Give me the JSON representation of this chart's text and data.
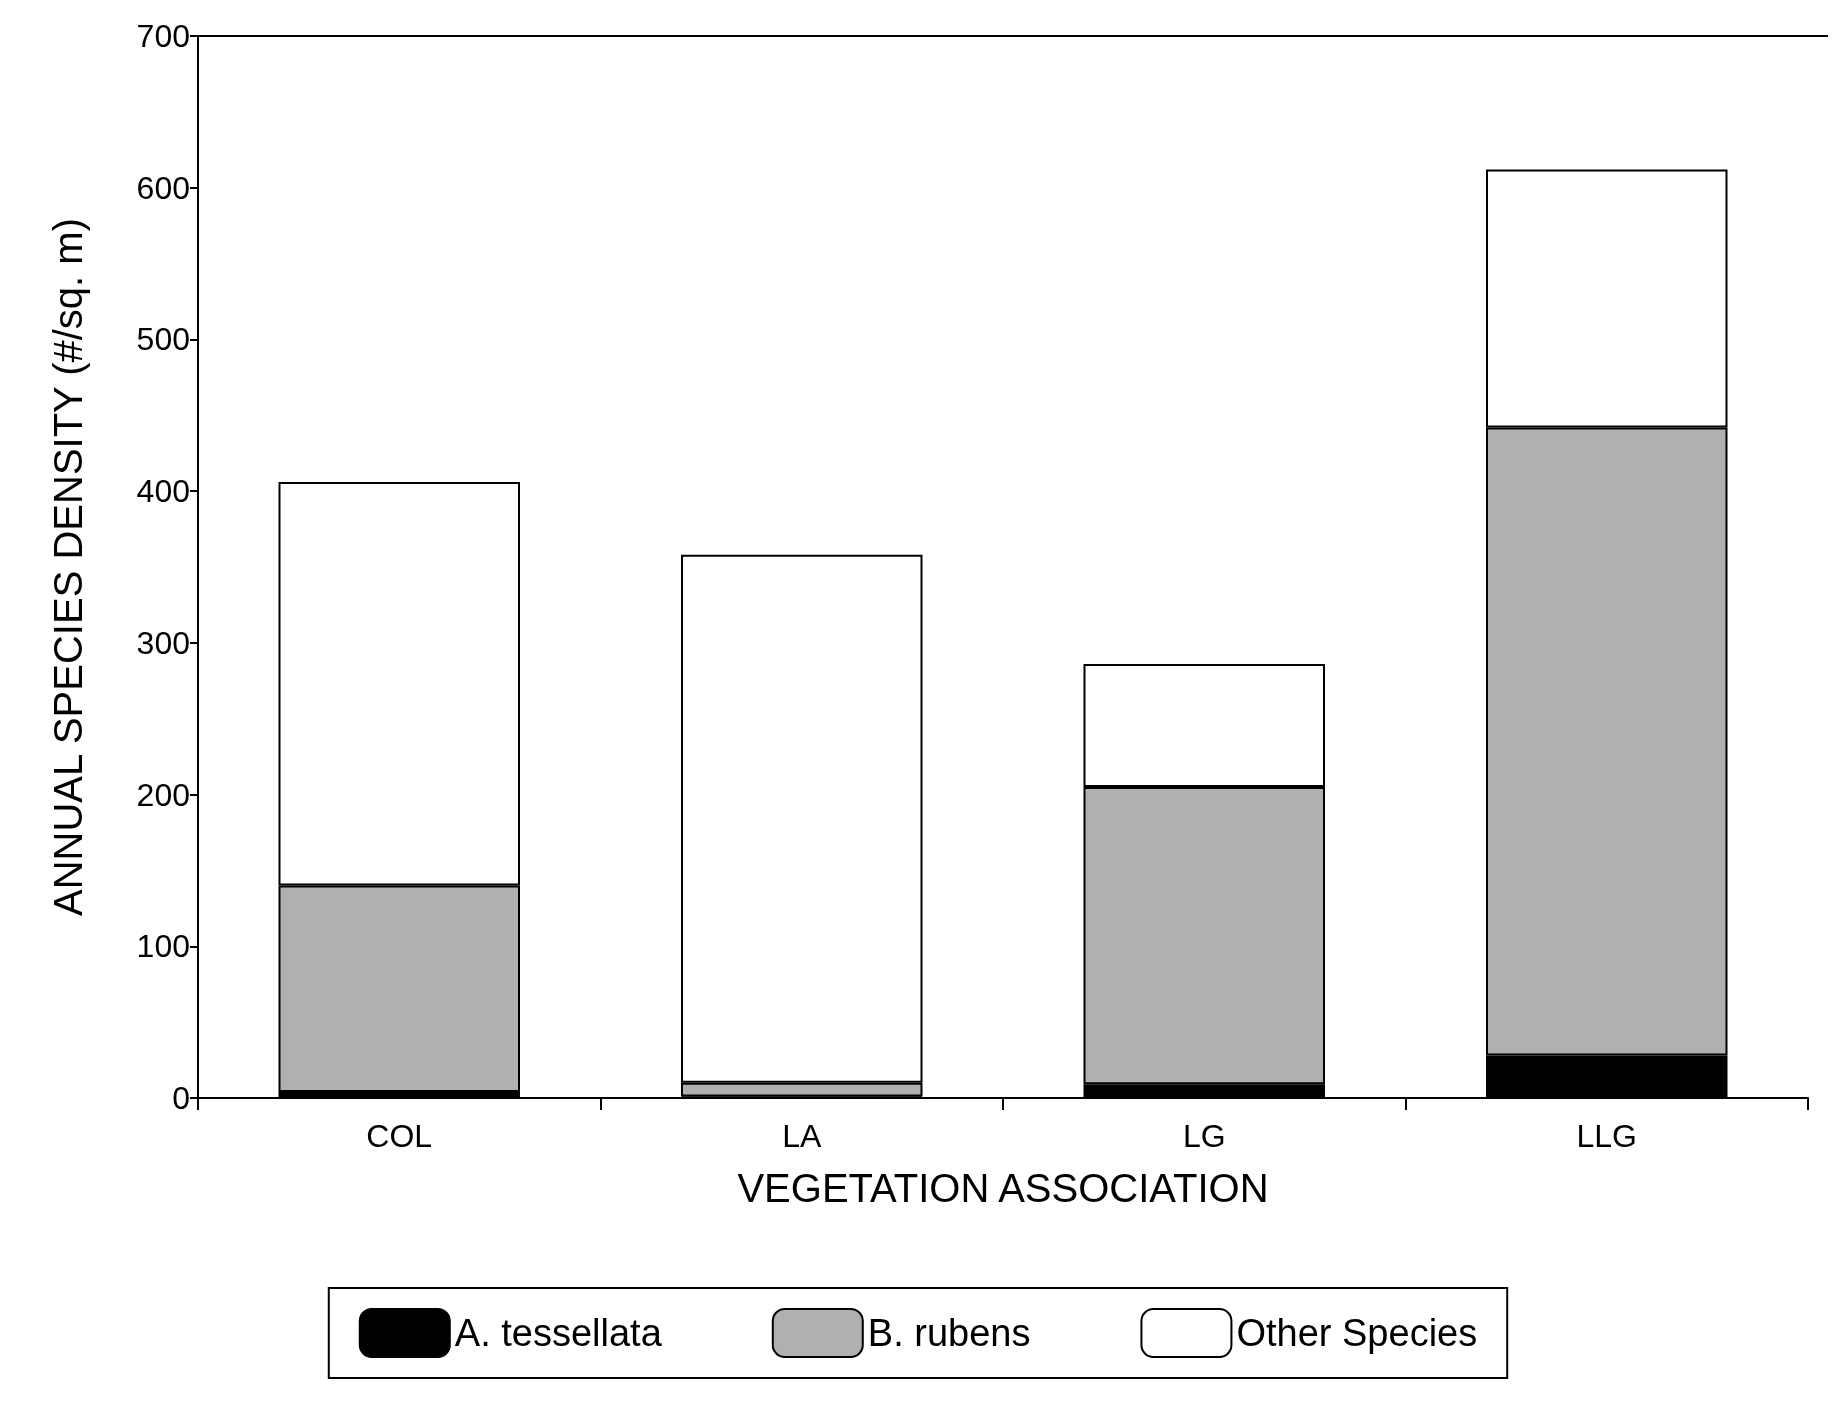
{
  "chart_data": {
    "type": "bar",
    "stacked": true,
    "xlabel": "VEGETATION ASSOCIATION",
    "ylabel": "ANNUAL SPECIES DENSITY (#/sq. m)",
    "categories": [
      "COL",
      "LA",
      "LG",
      "LLG"
    ],
    "series": [
      {
        "name": "A. tessellata",
        "color": "#000000",
        "values": [
          4,
          1,
          9,
          28
        ]
      },
      {
        "name": "B. rubens",
        "color": "#b0b0b0",
        "values": [
          136,
          9,
          196,
          414
        ]
      },
      {
        "name": "Other Species",
        "color": "#ffffff",
        "values": [
          266,
          348,
          81,
          170
        ]
      }
    ],
    "ylim": [
      0,
      700
    ],
    "yticks": [
      0,
      100,
      200,
      300,
      400,
      500,
      600,
      700
    ],
    "grid": false,
    "legend": "bottom"
  }
}
